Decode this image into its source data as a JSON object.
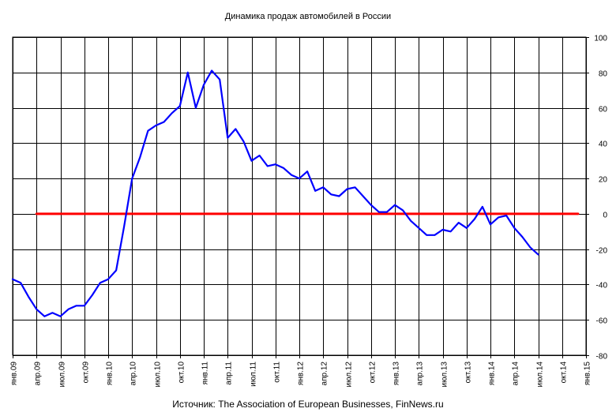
{
  "chart_data": {
    "type": "line",
    "title": "Динамика продаж автомобилей в России",
    "source": "Источник: The Association of European Businesses, FinNews.ru",
    "xlabel": "",
    "ylabel": "",
    "ylim": [
      -80,
      100
    ],
    "yticks": [
      100,
      80,
      60,
      40,
      20,
      0,
      -20,
      -40,
      -60,
      -80
    ],
    "y_axis_side": "right",
    "grid": true,
    "xlim": [
      "2009-01",
      "2015-01"
    ],
    "x_tick_labels": [
      "янв.09",
      "апр.09",
      "июл.09",
      "окт.09",
      "янв.10",
      "апр.10",
      "июл.10",
      "окт.10",
      "янв.11",
      "апр.11",
      "июл.11",
      "окт.11",
      "янв.12",
      "апр.12",
      "июл.12",
      "окт.12",
      "янв.13",
      "апр.13",
      "июл.13",
      "окт.13",
      "янв.14",
      "апр.14",
      "июл.14",
      "окт.14",
      "янв.15"
    ],
    "series": [
      {
        "color": "#0000ff",
        "x": [
          "2009-01",
          "2009-02",
          "2009-03",
          "2009-04",
          "2009-05",
          "2009-06",
          "2009-07",
          "2009-08",
          "2009-09",
          "2009-10",
          "2009-11",
          "2009-12",
          "2010-01",
          "2010-02",
          "2010-03",
          "2010-04",
          "2010-05",
          "2010-06",
          "2010-07",
          "2010-08",
          "2010-09",
          "2010-10",
          "2010-11",
          "2010-12",
          "2011-01",
          "2011-02",
          "2011-03",
          "2011-04",
          "2011-05",
          "2011-06",
          "2011-07",
          "2011-08",
          "2011-09",
          "2011-10",
          "2011-11",
          "2011-12",
          "2012-01",
          "2012-02",
          "2012-03",
          "2012-04",
          "2012-05",
          "2012-06",
          "2012-07",
          "2012-08",
          "2012-09",
          "2012-10",
          "2012-11",
          "2012-12",
          "2013-01",
          "2013-02",
          "2013-03",
          "2013-04",
          "2013-05",
          "2013-06",
          "2013-07",
          "2013-08",
          "2013-09",
          "2013-10",
          "2013-11",
          "2013-12",
          "2014-01",
          "2014-02",
          "2014-03",
          "2014-04",
          "2014-05",
          "2014-06",
          "2014-07"
        ],
        "values": [
          -37,
          -39,
          -47,
          -54,
          -58,
          -56,
          -58,
          -54,
          -52,
          -52,
          -46,
          -39,
          -37,
          -32,
          -7,
          20,
          32,
          47,
          50,
          52,
          57,
          61,
          80,
          60,
          73,
          81,
          76,
          43,
          48,
          41,
          30,
          33,
          27,
          28,
          26,
          22,
          20,
          24,
          13,
          15,
          11,
          10,
          14,
          15,
          10,
          5,
          1,
          1,
          5,
          2,
          -4,
          -8,
          -12,
          -12,
          -9,
          -10,
          -5,
          -8,
          -3,
          4,
          -6,
          -2,
          -1,
          -8,
          -13,
          -19,
          -23
        ]
      },
      {
        "color": "#ff0000",
        "x": [
          "2009-04",
          "2014-12"
        ],
        "values": [
          0,
          0
        ]
      }
    ]
  }
}
